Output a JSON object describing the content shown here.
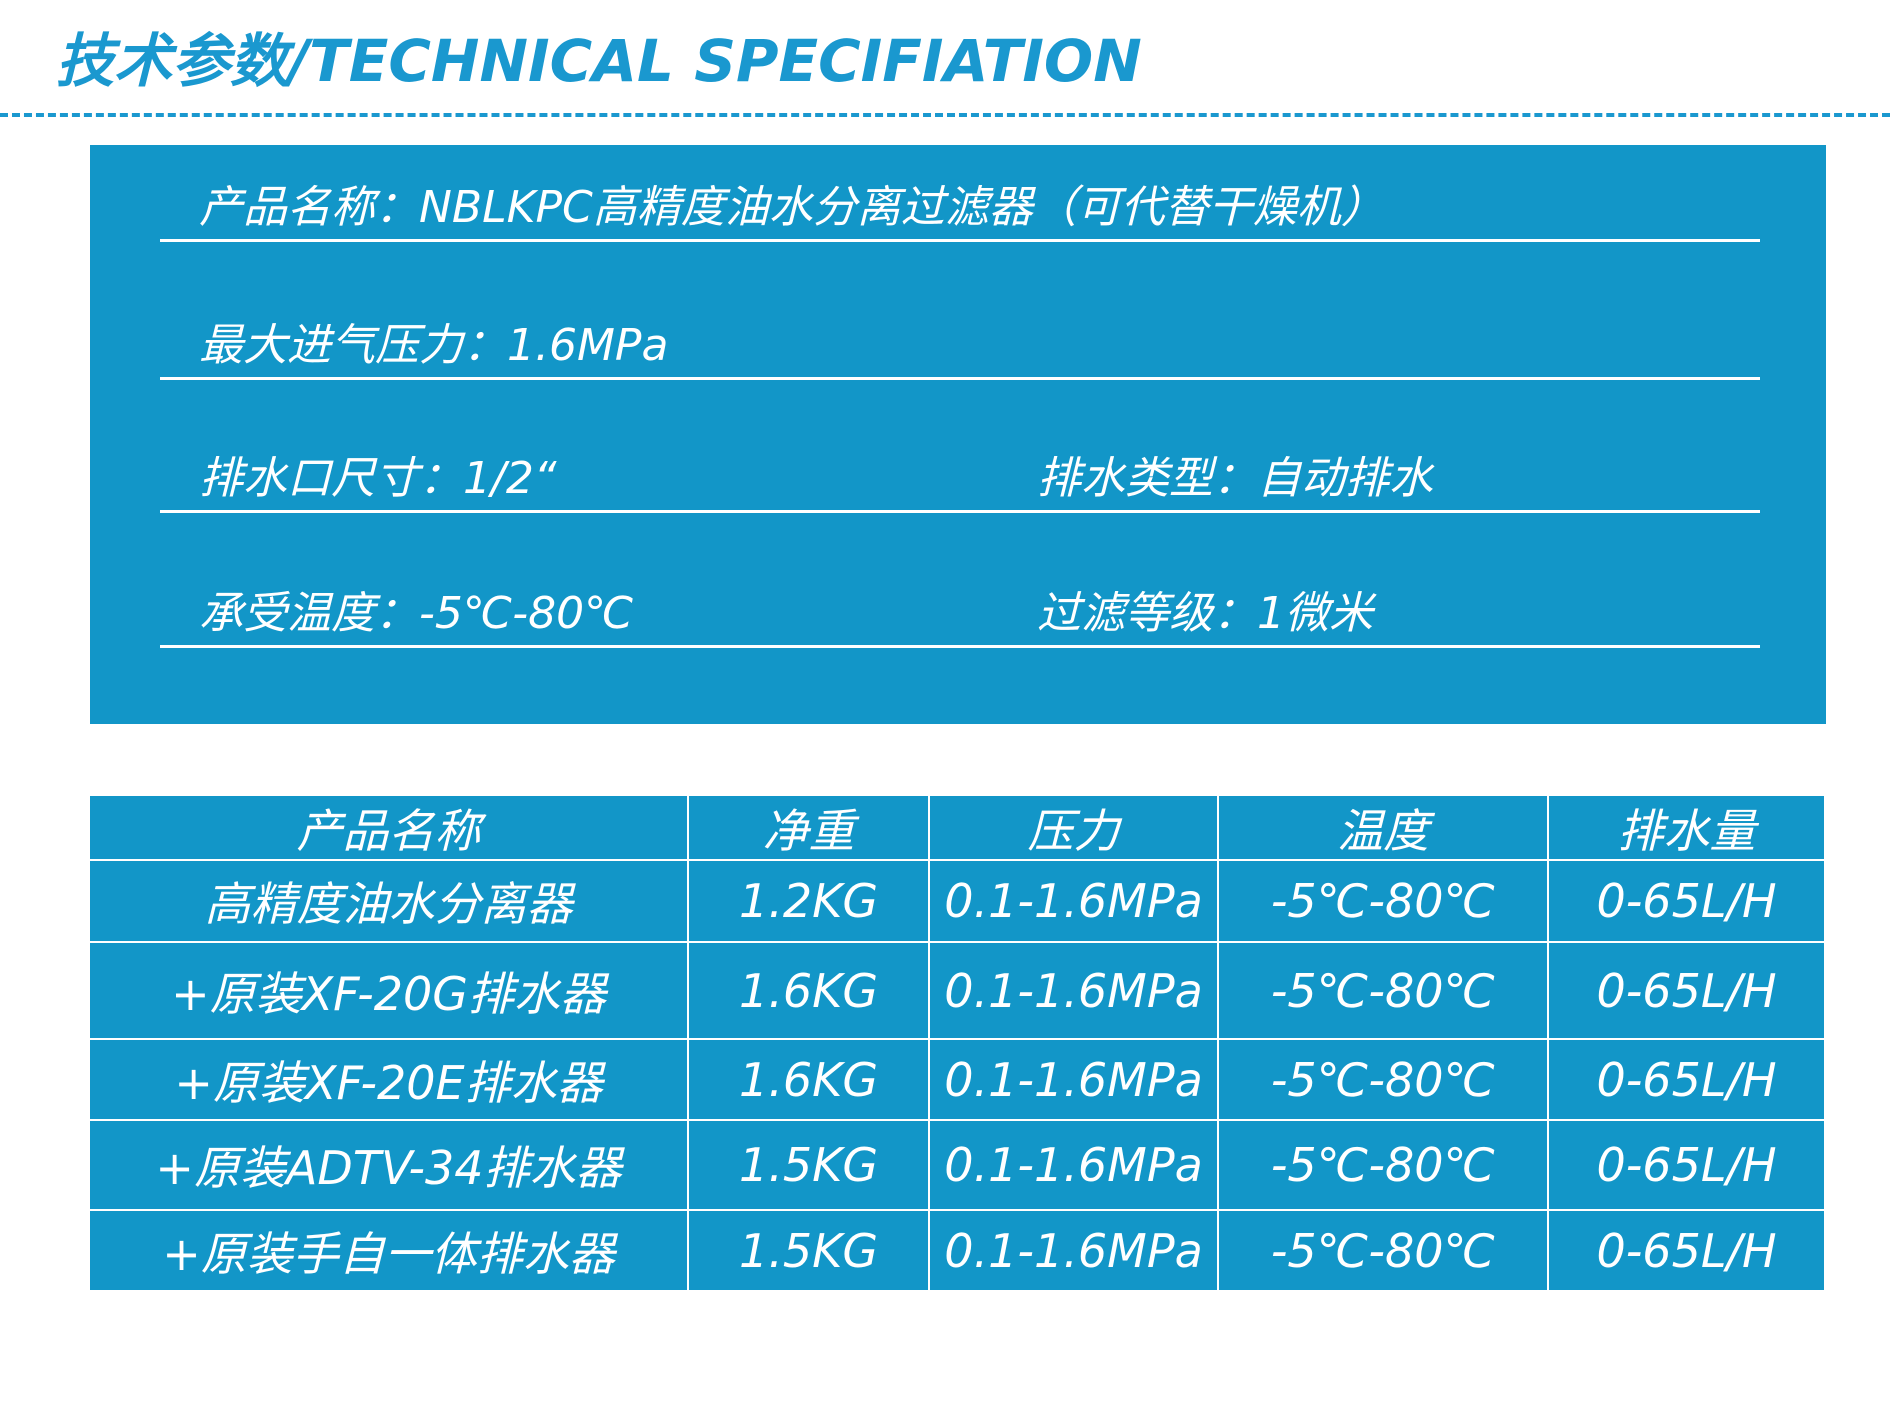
{
  "header": {
    "title": "技术参数/TECHNICAL SPECIFIATION"
  },
  "specs": [
    [
      "产品名称：NBLKPC高精度油水分离过滤器（可代替干燥机）"
    ],
    [
      "最大进气压力：1.6MPa"
    ],
    [
      "排水口尺寸：1/2“",
      "排水类型：自动排水"
    ],
    [
      "承受温度：-5℃-80℃",
      "过滤等级：1微米"
    ]
  ],
  "table": {
    "headers": [
      "产品名称",
      "净重",
      "压力",
      "温度",
      "排水量"
    ],
    "rows": [
      [
        "高精度油水分离器",
        "1.2KG",
        "0.1-1.6MPa",
        "-5℃-80℃",
        "0-65L/H"
      ],
      [
        "+原装XF-20G排水器",
        "1.6KG",
        "0.1-1.6MPa",
        "-5℃-80℃",
        "0-65L/H"
      ],
      [
        "+原装XF-20E排水器",
        "1.6KG",
        "0.1-1.6MPa",
        "-5℃-80℃",
        "0-65L/H"
      ],
      [
        "+原装ADTV-34排水器",
        "1.5KG",
        "0.1-1.6MPa",
        "-5℃-80℃",
        "0-65L/H"
      ],
      [
        "+原装手自一体排水器",
        "1.5KG",
        "0.1-1.6MPa",
        "-5℃-80℃",
        "0-65L/H"
      ]
    ]
  }
}
